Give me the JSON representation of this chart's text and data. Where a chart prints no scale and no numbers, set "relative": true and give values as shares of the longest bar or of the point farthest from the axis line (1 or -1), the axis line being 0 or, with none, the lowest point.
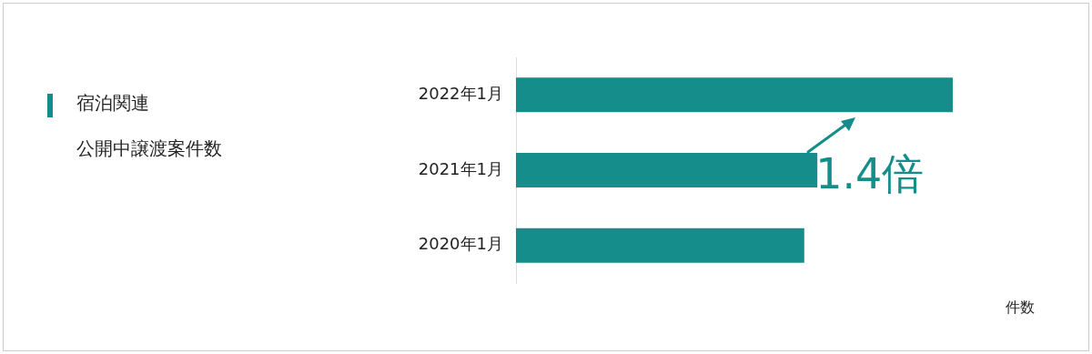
{
  "chart_data": {
    "type": "bar",
    "orientation": "horizontal",
    "relative": true,
    "title": "宿泊関連",
    "subtitle": "公開中譲渡案件数",
    "xlabel": "件数",
    "categories": [
      "2022年1月",
      "2021年1月",
      "2020年1月"
    ],
    "values": [
      1,
      0.69,
      0.66
    ],
    "color": "#158e8b",
    "legend": false,
    "annotations": [
      "1.4倍"
    ]
  }
}
